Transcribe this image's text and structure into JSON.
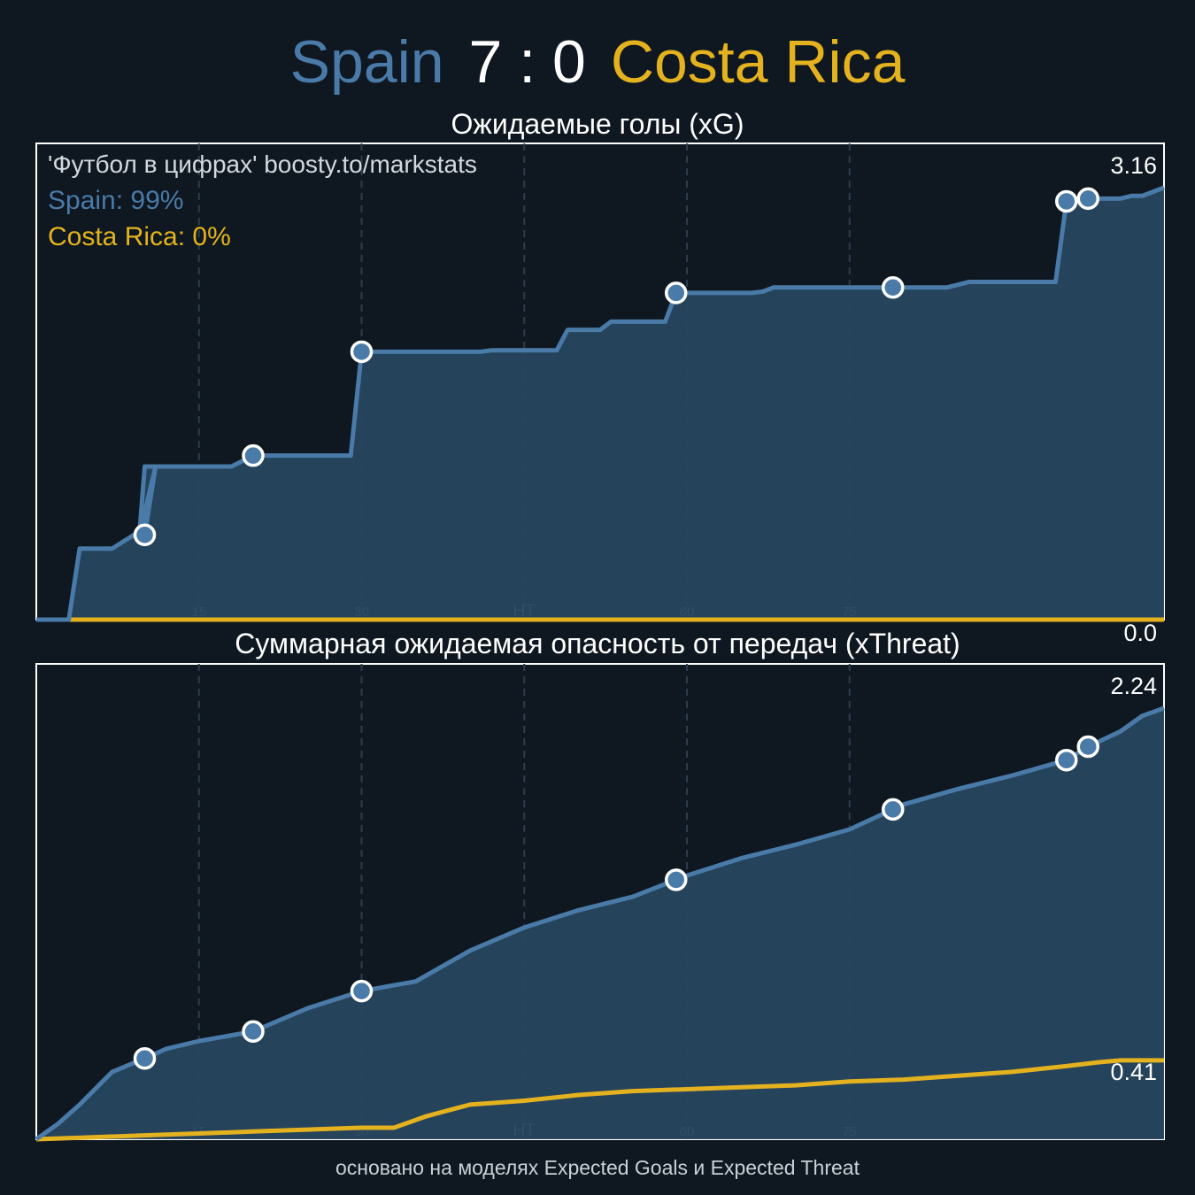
{
  "header": {
    "home_team": "Spain",
    "score": "7 : 0",
    "away_team": "Costa Rica"
  },
  "colors": {
    "background": "#0f1821",
    "home": "#4a7aa8",
    "home_fill": "#27465f",
    "away": "#e3b21e",
    "marker_stroke": "#ffffff"
  },
  "watermark": "'Футбол в цифрах' boosty.to/markstats",
  "legend": {
    "home": "Spain: 99%",
    "away": "Costa Rica: 0%"
  },
  "footer": "основано на моделях Expected Goals и Expected Threat",
  "chart_data": [
    {
      "type": "area",
      "title": "Ожидаемые голы (xG)",
      "xlim": [
        0,
        104
      ],
      "ylim": [
        0,
        3.16
      ],
      "x_ticks": [
        15,
        30,
        45,
        60,
        75
      ],
      "x_tick_labels": [
        "15",
        "30",
        "HT",
        "60",
        "75"
      ],
      "end_labels": {
        "home": "3.16",
        "away": "0.0"
      },
      "series": [
        {
          "team": "home",
          "x": [
            0,
            3,
            4,
            7,
            9,
            10,
            11,
            9.5,
            10,
            18,
            20,
            29,
            30,
            33,
            41,
            42,
            48,
            49,
            52,
            53,
            58,
            59,
            63,
            66,
            67,
            68,
            75,
            84,
            85,
            86,
            94,
            95,
            97,
            98,
            99,
            100,
            101,
            102,
            104
          ],
          "y": [
            0,
            0,
            0.52,
            0.52,
            0.62,
            0.62,
            1.12,
            0.62,
            1.12,
            1.12,
            1.2,
            1.2,
            1.96,
            1.96,
            1.96,
            1.97,
            1.97,
            2.12,
            2.12,
            2.18,
            2.18,
            2.39,
            2.39,
            2.39,
            2.4,
            2.43,
            2.43,
            2.43,
            2.45,
            2.47,
            2.47,
            3.06,
            3.08,
            3.08,
            3.08,
            3.08,
            3.1,
            3.1,
            3.16
          ]
        },
        {
          "team": "away",
          "x": [
            0,
            104
          ],
          "y": [
            0,
            0
          ]
        }
      ],
      "goals": [
        10,
        20,
        30,
        59,
        79,
        95,
        97
      ]
    },
    {
      "type": "line",
      "title": "Суммарная ожидаемая опасность от передач (xThreat)",
      "xlim": [
        0,
        104
      ],
      "ylim": [
        0,
        2.24
      ],
      "x_ticks": [
        15,
        30,
        45,
        60,
        75
      ],
      "x_tick_labels": [
        "15",
        "30",
        "HT",
        "60",
        "75"
      ],
      "end_labels": {
        "home": "2.24",
        "away": "0.41"
      },
      "series": [
        {
          "team": "home",
          "x": [
            0,
            2,
            4,
            7,
            10,
            12,
            15,
            20,
            25,
            30,
            35,
            40,
            45,
            50,
            55,
            60,
            65,
            70,
            75,
            80,
            85,
            90,
            95,
            97,
            100,
            102,
            104
          ],
          "y": [
            0,
            0.08,
            0.18,
            0.35,
            0.42,
            0.47,
            0.51,
            0.56,
            0.68,
            0.77,
            0.82,
            0.98,
            1.1,
            1.19,
            1.26,
            1.37,
            1.46,
            1.53,
            1.61,
            1.74,
            1.82,
            1.89,
            1.97,
            2.04,
            2.12,
            2.2,
            2.24
          ]
        },
        {
          "team": "away",
          "x": [
            0,
            5,
            10,
            15,
            20,
            25,
            30,
            33,
            36,
            40,
            45,
            50,
            55,
            60,
            65,
            70,
            75,
            80,
            85,
            90,
            95,
            98,
            100,
            104
          ],
          "y": [
            0,
            0.01,
            0.02,
            0.03,
            0.04,
            0.05,
            0.06,
            0.06,
            0.12,
            0.18,
            0.2,
            0.23,
            0.25,
            0.26,
            0.27,
            0.28,
            0.3,
            0.31,
            0.33,
            0.35,
            0.38,
            0.4,
            0.41,
            0.41
          ]
        }
      ],
      "goals": [
        10,
        20,
        30,
        59,
        79,
        95,
        97
      ]
    }
  ]
}
